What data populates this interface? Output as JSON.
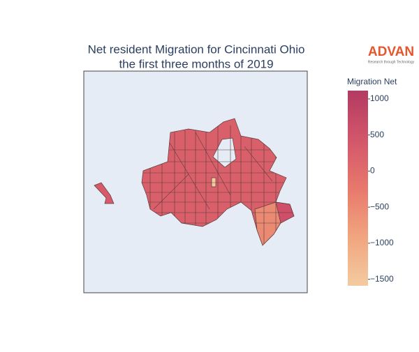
{
  "logo": {
    "name": "ADVAN",
    "tagline": "Research through Technology"
  },
  "chart_data": {
    "type": "choropleth",
    "title": "Net resident Migration for Cincinnati Ohio",
    "subtitle": "the first three months of 2019",
    "colorbar": {
      "title": "Migration Net",
      "ylim": [
        -1590,
        1115
      ],
      "yticks": [
        1000,
        500,
        0,
        {
          "value": -500,
          "label": "−500"
        },
        {
          "value": -1000,
          "label": "−1000"
        },
        {
          "value": -1500,
          "label": "−1500"
        }
      ],
      "colorscale": [
        "#f3cba0",
        "#f1a57f",
        "#e8786c",
        "#d2566a",
        "#b33a62"
      ]
    }
  }
}
